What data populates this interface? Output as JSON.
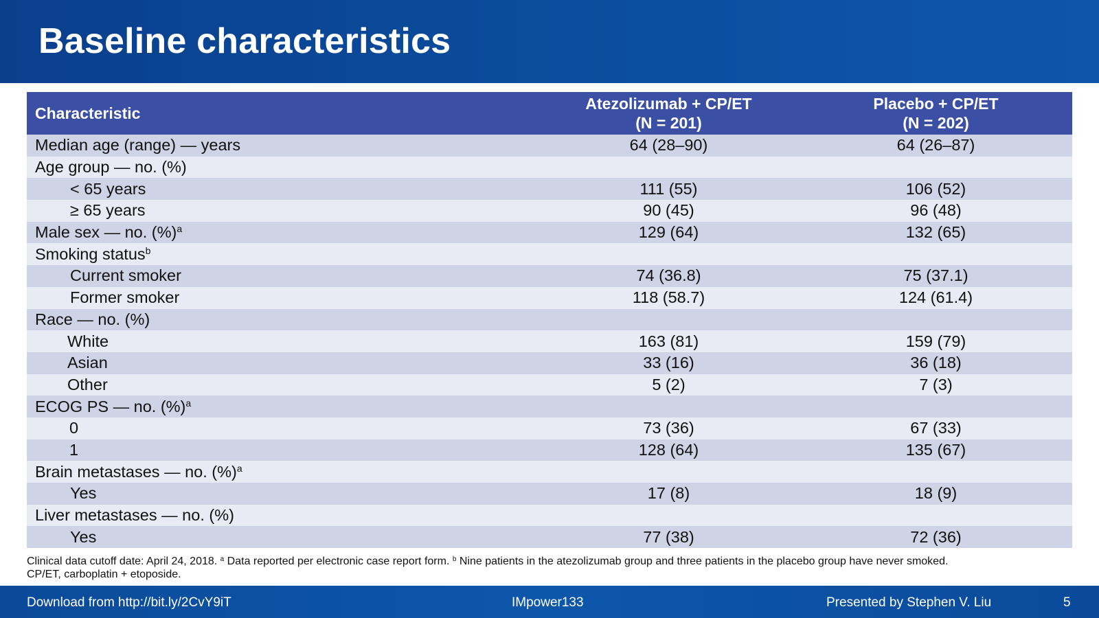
{
  "slide": {
    "title": "Baseline characteristics"
  },
  "table": {
    "headers": {
      "characteristic": "Characteristic",
      "arm1_line1": "Atezolizumab + CP/ET",
      "arm1_line2": "(N = 201)",
      "arm2_line1": "Placebo + CP/ET",
      "arm2_line2": "(N = 202)"
    },
    "rows": [
      {
        "label": "Median age (range) — years",
        "sup": "",
        "indent": 0,
        "atezo": "64 (28–90)",
        "placebo": "64 (26–87)"
      },
      {
        "label": "Age group — no. (%)",
        "sup": "",
        "indent": 0,
        "atezo": "",
        "placebo": ""
      },
      {
        "label": "< 65 years",
        "sup": "",
        "indent": 1,
        "atezo": "111 (55)",
        "placebo": "106 (52)"
      },
      {
        "label": "≥ 65 years",
        "sup": "",
        "indent": 1,
        "atezo": "90 (45)",
        "placebo": "96 (48)"
      },
      {
        "label": "Male sex — no. (%)",
        "sup": "a",
        "indent": 0,
        "atezo": "129 (64)",
        "placebo": "132 (65)"
      },
      {
        "label": "Smoking status",
        "sup": "b",
        "indent": 0,
        "atezo": "",
        "placebo": ""
      },
      {
        "label": "Current smoker",
        "sup": "",
        "indent": 1,
        "atezo": "74 (36.8)",
        "placebo": "75 (37.1)"
      },
      {
        "label": "Former smoker",
        "sup": "",
        "indent": 1,
        "atezo": "118 (58.7)",
        "placebo": "124 (61.4)"
      },
      {
        "label": "Race — no. (%)",
        "sup": "",
        "indent": 0,
        "atezo": "",
        "placebo": ""
      },
      {
        "label": "White",
        "sup": "",
        "indent": 2,
        "atezo": "163 (81)",
        "placebo": "159 (79)"
      },
      {
        "label": "Asian",
        "sup": "",
        "indent": 2,
        "atezo": "33 (16)",
        "placebo": "36 (18)"
      },
      {
        "label": "Other",
        "sup": "",
        "indent": 2,
        "atezo": "5 (2)",
        "placebo": "7 (3)"
      },
      {
        "label": "ECOG PS — no. (%)",
        "sup": "a",
        "indent": 0,
        "atezo": "",
        "placebo": ""
      },
      {
        "label": "0",
        "sup": "",
        "indent": 3,
        "atezo": "73 (36)",
        "placebo": "67 (33)"
      },
      {
        "label": "1",
        "sup": "",
        "indent": 3,
        "atezo": "128 (64)",
        "placebo": "135 (67)"
      },
      {
        "label": "Brain metastases — no. (%)",
        "sup": "a",
        "indent": 0,
        "atezo": "",
        "placebo": ""
      },
      {
        "label": "Yes",
        "sup": "",
        "indent": 4,
        "atezo": "17 (8)",
        "placebo": "18 (9)"
      },
      {
        "label": "Liver metastases — no. (%)",
        "sup": "",
        "indent": 0,
        "atezo": "",
        "placebo": ""
      },
      {
        "label": "Yes",
        "sup": "",
        "indent": 4,
        "atezo": "77 (38)",
        "placebo": "72 (36)"
      }
    ]
  },
  "footnote": {
    "part1": "Clinical data cutoff date: April 24, 2018. ",
    "sup_a": "a",
    "part2": " Data reported per electronic case report form. ",
    "sup_b": "b",
    "part3": " Nine patients in the atezolizumab group and three patients in the placebo group have never smoked.",
    "line2": "CP/ET, carboplatin + etoposide."
  },
  "footer": {
    "download": "Download from http://bit.ly/2CvY9iT",
    "study": "IMpower133",
    "presenter": "Presented by Stephen V. Liu",
    "page": "5"
  },
  "colors": {
    "header_band": "#0b4b9c",
    "table_header": "#3b4fa4",
    "row_dark": "#cfd3e6",
    "row_light": "#e9ebf4"
  }
}
